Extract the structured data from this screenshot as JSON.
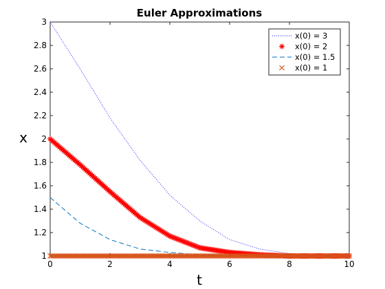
{
  "chart_data": {
    "type": "line",
    "title": "Euler Approximations",
    "xlabel": "t",
    "ylabel": "x",
    "xlim": [
      0,
      10
    ],
    "ylim": [
      1,
      3
    ],
    "grid": false,
    "legend_position": "top-right",
    "x_ticks": [
      0,
      2,
      4,
      6,
      8,
      10
    ],
    "y_ticks": [
      1,
      1.2,
      1.4,
      1.6,
      1.8,
      2,
      2.2,
      2.4,
      2.6,
      2.8,
      3
    ],
    "series": [
      {
        "name": "x(0) = 3",
        "color": "#0000ff",
        "style": "dotted",
        "x": [
          0,
          1,
          2,
          3,
          4,
          5,
          6,
          7,
          8,
          9,
          10
        ],
        "y": [
          3.0,
          2.6,
          2.18,
          1.82,
          1.52,
          1.3,
          1.14,
          1.06,
          1.02,
          1.01,
          1.0
        ]
      },
      {
        "name": "x(0) = 2",
        "color": "#ff0000",
        "style": "markers-asterisk",
        "x": [
          0,
          1,
          2,
          3,
          4,
          5,
          6,
          7,
          8,
          9,
          10
        ],
        "y": [
          2.0,
          1.78,
          1.55,
          1.33,
          1.17,
          1.07,
          1.03,
          1.01,
          1.0,
          1.0,
          1.0
        ]
      },
      {
        "name": "x(0) = 1.5",
        "color": "#0072bd",
        "style": "dashed",
        "x": [
          0,
          1,
          2,
          3,
          4,
          5,
          6,
          7,
          8,
          9,
          10
        ],
        "y": [
          1.5,
          1.28,
          1.14,
          1.06,
          1.03,
          1.01,
          1.0,
          1.0,
          1.0,
          1.0,
          1.0
        ]
      },
      {
        "name": "x(0) = 1",
        "color": "#d95319",
        "style": "markers-cross",
        "x": [
          0,
          1,
          2,
          3,
          4,
          5,
          6,
          7,
          8,
          9,
          10
        ],
        "y": [
          1,
          1,
          1,
          1,
          1,
          1,
          1,
          1,
          1,
          1,
          1
        ]
      }
    ]
  }
}
